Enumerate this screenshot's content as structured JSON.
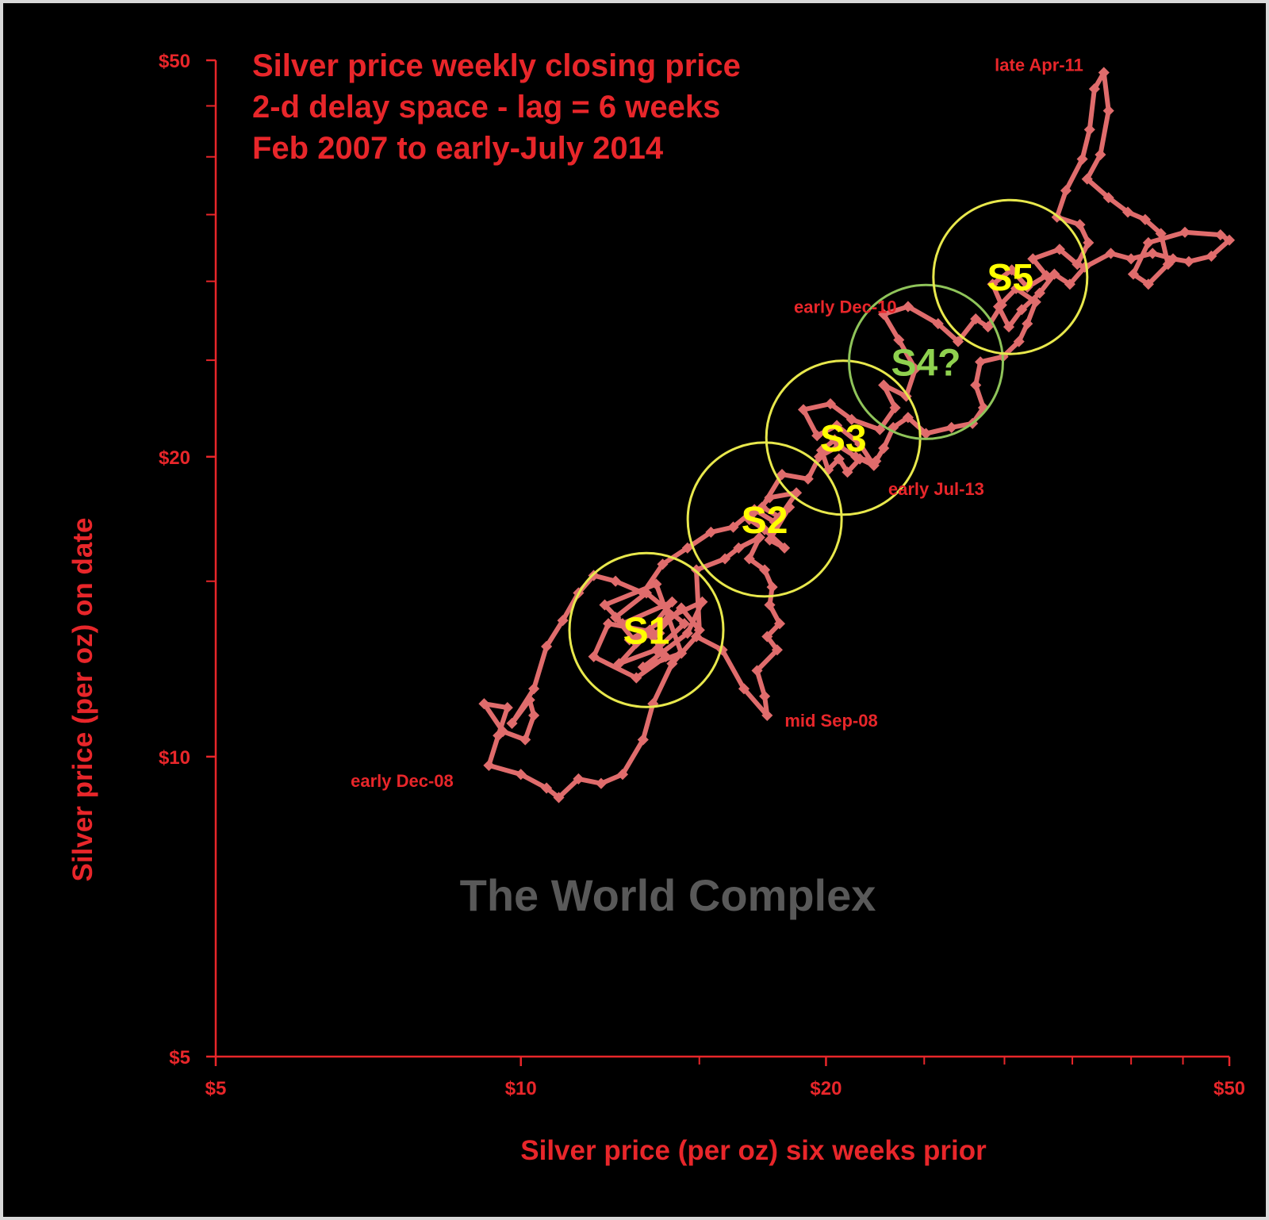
{
  "chart_data": {
    "type": "line",
    "title_lines": [
      "Silver price weekly closing price",
      "2-d delay space - lag = 6 weeks",
      "Feb 2007 to early-July 2014"
    ],
    "xlabel": "Silver price (per oz) six weeks prior",
    "ylabel": "Silver price (per oz) on date",
    "x_scale": "log",
    "y_scale": "log",
    "xlim": [
      5,
      50
    ],
    "ylim": [
      5,
      50
    ],
    "x_tick_labels": [
      {
        "value": 5,
        "label": "$5"
      },
      {
        "value": 10,
        "label": "$10"
      },
      {
        "value": 20,
        "label": "$20"
      },
      {
        "value": 50,
        "label": "$50"
      }
    ],
    "y_tick_labels": [
      {
        "value": 5,
        "label": "$5"
      },
      {
        "value": 10,
        "label": "$10"
      },
      {
        "value": 20,
        "label": "$20"
      },
      {
        "value": 50,
        "label": "$50"
      }
    ],
    "minor_ticks": [
      15,
      25,
      30,
      35,
      40,
      45
    ],
    "series": [
      {
        "color": "#e06c6c",
        "points": [
          [
            13.0,
            13.0
          ],
          [
            12.4,
            13.8
          ],
          [
            13.3,
            14.6
          ],
          [
            14.5,
            13.6
          ],
          [
            13.6,
            12.8
          ],
          [
            12.5,
            12.4
          ],
          [
            13.4,
            13.4
          ],
          [
            14.1,
            14.3
          ],
          [
            12.6,
            13.6
          ],
          [
            12.1,
            14.2
          ],
          [
            13.6,
            14.9
          ],
          [
            14.4,
            12.7
          ],
          [
            13.2,
            12.3
          ],
          [
            14.6,
            13.3
          ],
          [
            15.1,
            14.3
          ],
          [
            14.0,
            13.8
          ],
          [
            12.8,
            13.1
          ],
          [
            13.7,
            13.3
          ],
          [
            12.2,
            13.6
          ],
          [
            11.8,
            12.6
          ],
          [
            13.0,
            12.0
          ],
          [
            13.9,
            12.6
          ],
          [
            13.5,
            13.2
          ],
          [
            14.4,
            14.1
          ],
          [
            15.0,
            13.4
          ],
          [
            14.9,
            15.4
          ],
          [
            15.9,
            15.8
          ],
          [
            16.4,
            16.2
          ],
          [
            17.2,
            16.6
          ],
          [
            16.8,
            15.8
          ],
          [
            17.4,
            15.4
          ],
          [
            17.7,
            14.8
          ],
          [
            17.6,
            14.2
          ],
          [
            18.0,
            13.6
          ],
          [
            17.5,
            13.2
          ],
          [
            17.9,
            12.8
          ],
          [
            17.1,
            12.2
          ],
          [
            17.4,
            11.5
          ],
          [
            17.5,
            11.0
          ],
          [
            16.6,
            11.7
          ],
          [
            15.8,
            12.8
          ],
          [
            14.9,
            13.2
          ],
          [
            14.1,
            12.4
          ],
          [
            13.5,
            11.3
          ],
          [
            13.2,
            10.4
          ],
          [
            12.6,
            9.6
          ],
          [
            12.0,
            9.4
          ],
          [
            11.4,
            9.5
          ],
          [
            10.9,
            9.1
          ],
          [
            10.6,
            9.3
          ],
          [
            10.0,
            9.6
          ],
          [
            9.3,
            9.8
          ],
          [
            9.5,
            10.5
          ],
          [
            9.7,
            11.2
          ],
          [
            9.2,
            11.3
          ],
          [
            9.6,
            10.6
          ],
          [
            10.1,
            10.4
          ],
          [
            10.3,
            11.0
          ],
          [
            10.2,
            11.4
          ],
          [
            9.8,
            10.8
          ],
          [
            10.3,
            11.7
          ],
          [
            10.6,
            12.9
          ],
          [
            11.0,
            13.7
          ],
          [
            11.4,
            14.6
          ],
          [
            11.8,
            15.2
          ],
          [
            12.4,
            15.0
          ],
          [
            13.2,
            14.6
          ],
          [
            13.8,
            15.6
          ],
          [
            14.6,
            16.2
          ],
          [
            15.4,
            16.8
          ],
          [
            16.2,
            17.0
          ],
          [
            17.0,
            17.7
          ],
          [
            17.8,
            17.2
          ],
          [
            18.4,
            17.8
          ],
          [
            17.6,
            16.5
          ],
          [
            18.2,
            16.2
          ],
          [
            17.4,
            16.9
          ],
          [
            16.8,
            17.3
          ],
          [
            17.6,
            18.2
          ],
          [
            18.7,
            18.4
          ],
          [
            18.0,
            17.4
          ],
          [
            17.3,
            17.8
          ],
          [
            18.1,
            19.2
          ],
          [
            19.2,
            19.0
          ],
          [
            19.7,
            20.0
          ],
          [
            20.6,
            20.5
          ],
          [
            21.4,
            20.0
          ],
          [
            22.3,
            19.6
          ],
          [
            21.6,
            20.6
          ],
          [
            20.5,
            21.5
          ],
          [
            19.6,
            21.0
          ],
          [
            19.0,
            22.3
          ],
          [
            20.2,
            22.6
          ],
          [
            21.2,
            21.8
          ],
          [
            22.6,
            21.3
          ],
          [
            23.4,
            22.4
          ],
          [
            22.8,
            23.6
          ],
          [
            24.0,
            23.0
          ],
          [
            24.5,
            24.5
          ],
          [
            23.6,
            26.2
          ],
          [
            22.8,
            27.8
          ],
          [
            24.1,
            28.3
          ],
          [
            25.8,
            27.2
          ],
          [
            27.0,
            26.1
          ],
          [
            28.1,
            27.5
          ],
          [
            28.9,
            27.0
          ],
          [
            29.8,
            28.4
          ],
          [
            29.2,
            29.8
          ],
          [
            30.5,
            30.8
          ],
          [
            31.6,
            29.6
          ],
          [
            33.0,
            30.4
          ],
          [
            32.0,
            31.6
          ],
          [
            34.0,
            32.3
          ],
          [
            35.4,
            31.2
          ],
          [
            36.3,
            32.8
          ],
          [
            35.6,
            34.2
          ],
          [
            33.8,
            34.8
          ],
          [
            34.5,
            37.0
          ],
          [
            35.8,
            39.8
          ],
          [
            36.4,
            42.6
          ],
          [
            36.8,
            46.8
          ],
          [
            37.6,
            48.6
          ],
          [
            38.0,
            44.5
          ],
          [
            37.3,
            40.2
          ],
          [
            36.2,
            38.0
          ],
          [
            38.0,
            36.4
          ],
          [
            39.7,
            35.2
          ],
          [
            41.3,
            34.6
          ],
          [
            42.8,
            33.5
          ],
          [
            43.5,
            31.2
          ],
          [
            41.6,
            29.8
          ],
          [
            40.2,
            30.5
          ],
          [
            41.6,
            32.8
          ],
          [
            45.2,
            33.6
          ],
          [
            49.0,
            33.4
          ],
          [
            50.0,
            33.0
          ],
          [
            48.0,
            31.8
          ],
          [
            45.6,
            31.4
          ],
          [
            44.0,
            31.6
          ],
          [
            42.0,
            32.0
          ],
          [
            40.0,
            31.6
          ],
          [
            38.2,
            32.0
          ],
          [
            36.0,
            31.0
          ],
          [
            34.8,
            29.8
          ],
          [
            33.6,
            30.5
          ],
          [
            32.5,
            29.2
          ],
          [
            31.2,
            28.1
          ],
          [
            30.3,
            27.0
          ],
          [
            29.6,
            28.3
          ],
          [
            30.8,
            29.5
          ],
          [
            32.2,
            28.6
          ],
          [
            31.6,
            27.2
          ],
          [
            31.0,
            26.1
          ],
          [
            29.9,
            25.2
          ],
          [
            28.4,
            24.9
          ],
          [
            28.1,
            23.6
          ],
          [
            28.6,
            22.4
          ],
          [
            27.9,
            21.6
          ],
          [
            26.6,
            21.4
          ],
          [
            25.1,
            21.1
          ],
          [
            24.1,
            21.9
          ],
          [
            23.3,
            21.4
          ],
          [
            22.8,
            20.4
          ],
          [
            22.4,
            19.8
          ],
          [
            21.6,
            19.9
          ],
          [
            21.0,
            19.3
          ],
          [
            20.6,
            19.9
          ],
          [
            20.1,
            19.4
          ],
          [
            19.8,
            20.3
          ],
          [
            20.4,
            20.8
          ]
        ]
      }
    ],
    "annotations": [
      {
        "text": "late Apr-11",
        "x": 36.8,
        "y": 48.6
      },
      {
        "text": "early Dec-10",
        "x": 24.0,
        "y": 28.3
      },
      {
        "text": "early Jul-13",
        "x": 22.3,
        "y": 19.0
      },
      {
        "text": "mid Sep-08",
        "x": 17.5,
        "y": 11.0
      },
      {
        "text": "early Dec-08",
        "x": 8.8,
        "y": 9.5
      }
    ],
    "regions": [
      {
        "label": "S1",
        "x": 13.3,
        "y": 13.4,
        "color": "#ffff00",
        "stroke": "#e8e84c"
      },
      {
        "label": "S2",
        "x": 17.4,
        "y": 17.3,
        "color": "#ffff00",
        "stroke": "#e8e84c"
      },
      {
        "label": "S3",
        "x": 20.8,
        "y": 20.9,
        "color": "#ffff00",
        "stroke": "#e8e84c"
      },
      {
        "label": "S4?",
        "x": 25.1,
        "y": 24.9,
        "color": "#8fd14f",
        "stroke": "#8fc45a"
      },
      {
        "label": "S5",
        "x": 30.4,
        "y": 30.3,
        "color": "#ffff00",
        "stroke": "#e8e84c"
      }
    ],
    "watermark": "The World Complex",
    "colors": {
      "background": "#000000",
      "axis": "#e8262a",
      "text": "#e8262a",
      "series": "#e06c6c",
      "watermark": "#595959"
    },
    "grid": false,
    "legend": "none"
  }
}
